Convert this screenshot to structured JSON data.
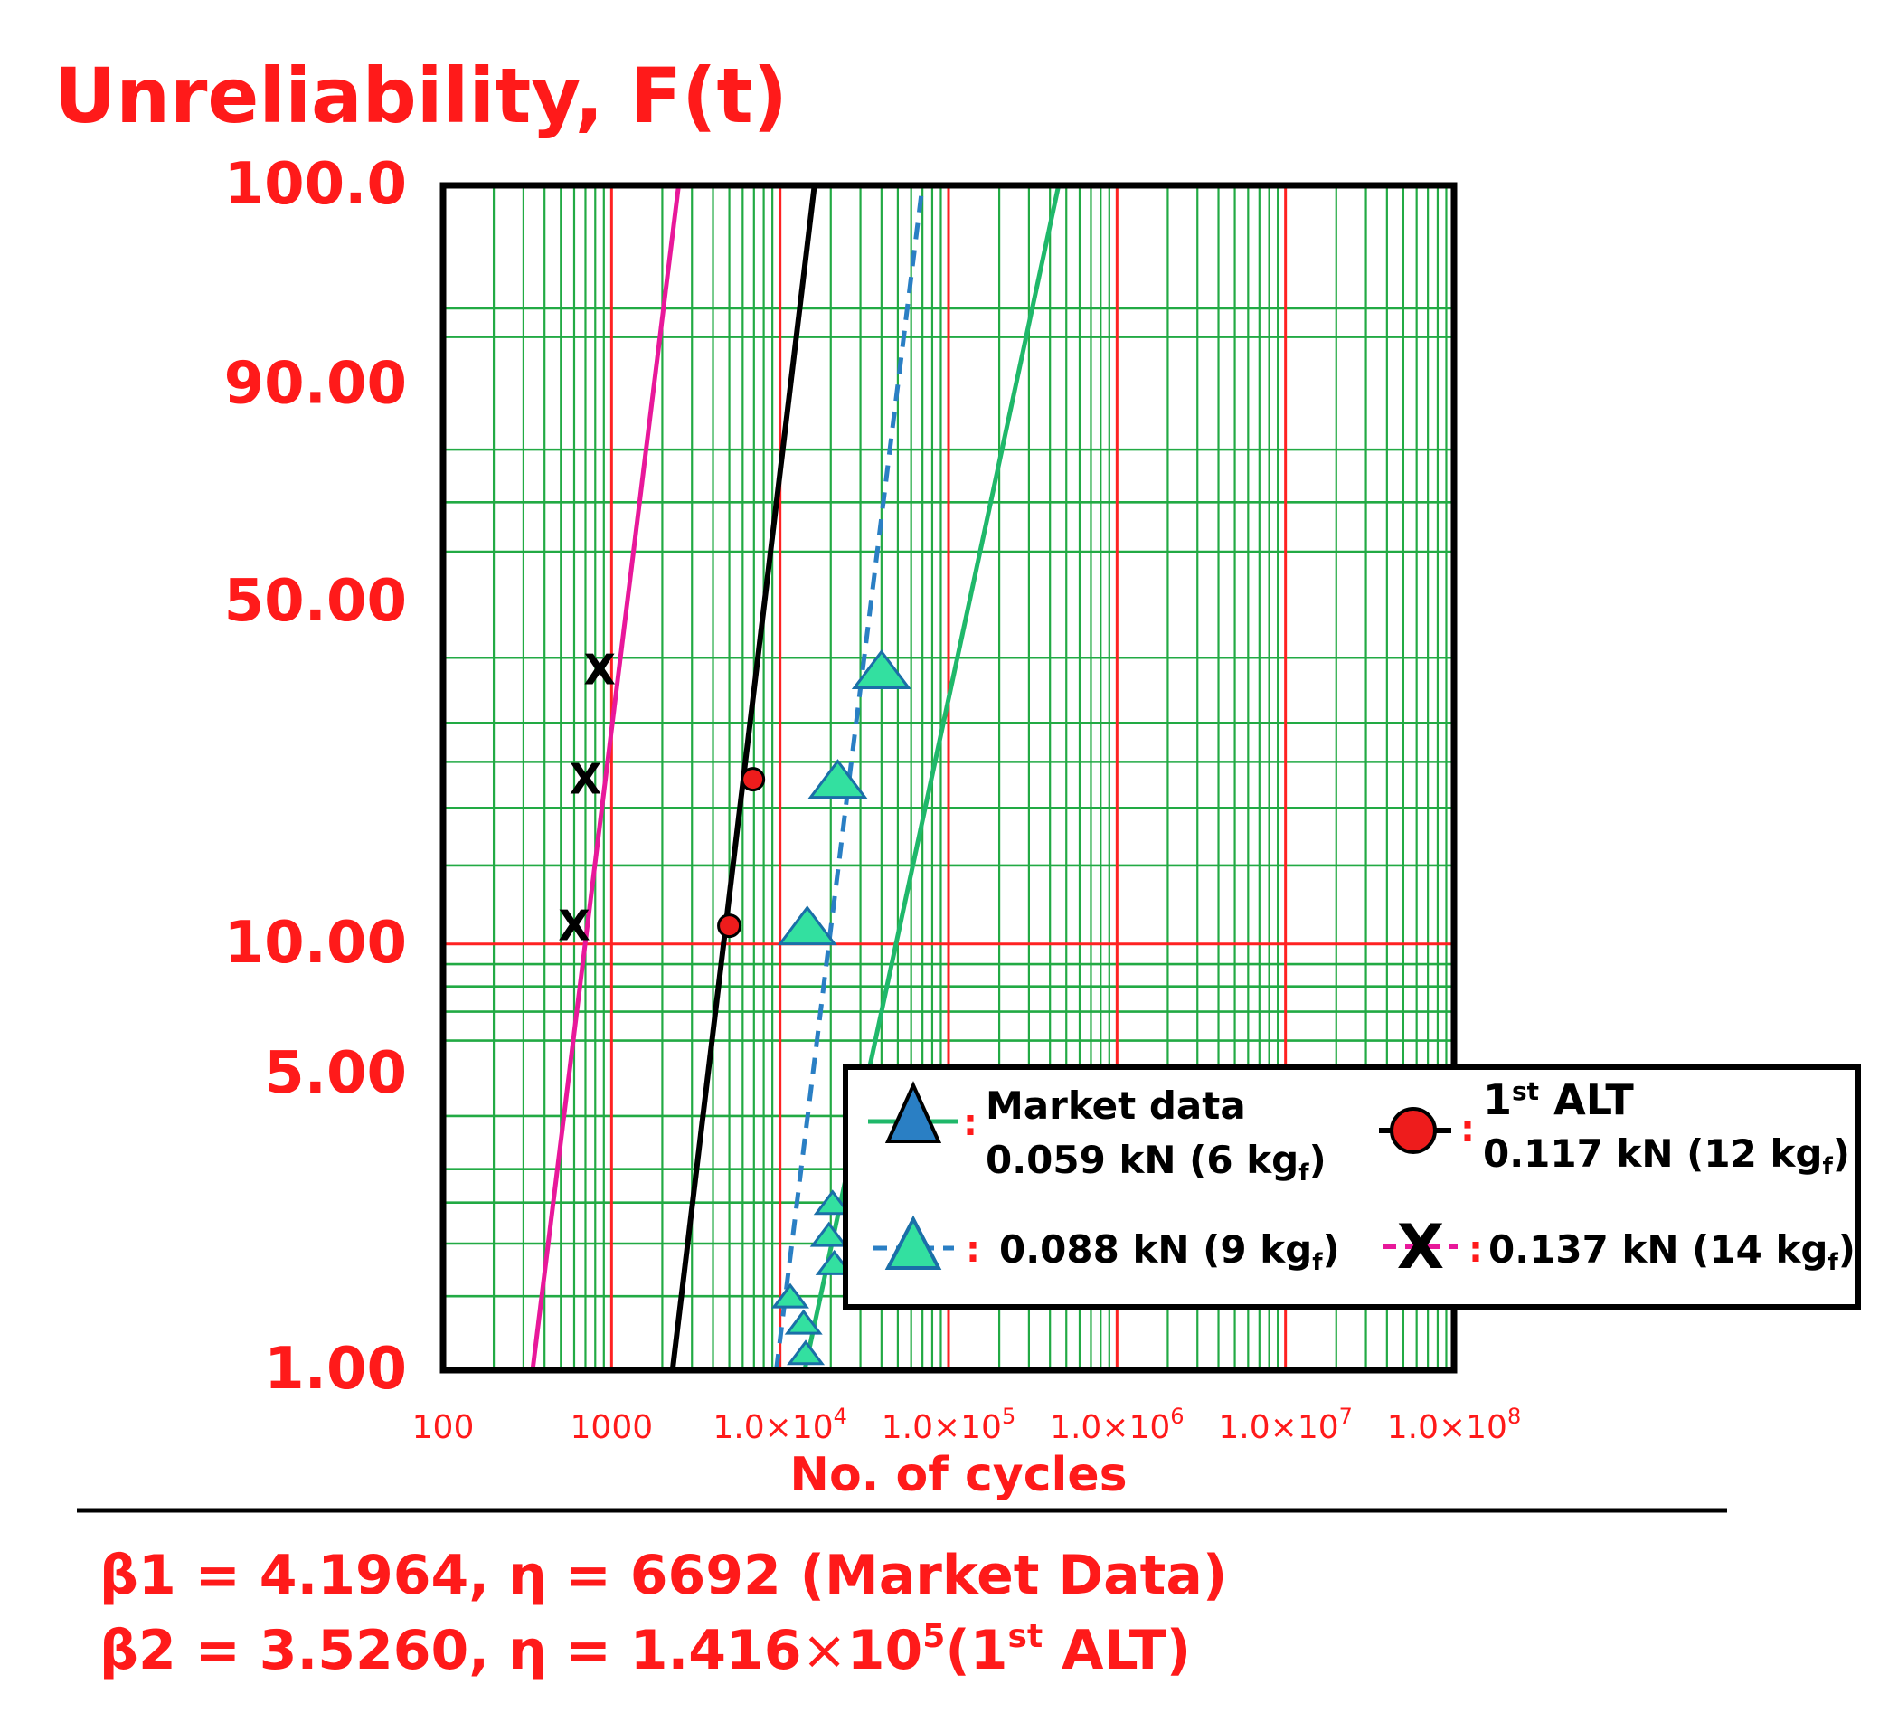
{
  "chart_data": {
    "type": "scatter",
    "title": "Unreliability, F(t)",
    "xlabel": "No. of cycles",
    "ylabel": "",
    "x_scale": "log",
    "y_scale": "weibull",
    "xlim": [
      100,
      100000000
    ],
    "ylim": [
      1,
      100
    ],
    "grid": true,
    "x_ticks": [
      {
        "value": 100,
        "label": "100"
      },
      {
        "value": 1000,
        "label": "1000"
      },
      {
        "value": 10000,
        "mant": "1.0×10",
        "exp": "4"
      },
      {
        "value": 100000,
        "mant": "1.0×10",
        "exp": "5"
      },
      {
        "value": 1000000,
        "mant": "1.0×10",
        "exp": "6"
      },
      {
        "value": 10000000,
        "mant": "1.0×10",
        "exp": "7"
      },
      {
        "value": 100000000,
        "mant": "1.0×10",
        "exp": "8"
      }
    ],
    "y_ticks": [
      {
        "value": 1,
        "label": "1.00"
      },
      {
        "value": 5,
        "label": "5.00"
      },
      {
        "value": 10,
        "label": "10.00"
      },
      {
        "value": 50,
        "label": "50.00"
      },
      {
        "value": 90,
        "label": "90.00"
      },
      {
        "value": 99.9,
        "label": "100.0"
      }
    ],
    "series": [
      {
        "name": "0.137 kN (14 kgf)",
        "marker": "x",
        "color": "#e8189a",
        "line_style": "solid",
        "points": [
          [
            600,
            11
          ],
          [
            700,
            23
          ],
          [
            850,
            38
          ]
        ],
        "fit_line": [
          [
            340,
            1
          ],
          [
            2500,
            99.9
          ]
        ]
      },
      {
        "name": "0.117 kN (12 kgf)",
        "marker": "circle",
        "color": "#000000",
        "line_style": "solid",
        "points": [
          [
            5000,
            11
          ],
          [
            6900,
            23
          ]
        ],
        "fit_line": [
          [
            2300,
            1
          ],
          [
            16000,
            99.9
          ]
        ]
      },
      {
        "name": "0.088 kN (9 kgf)",
        "marker": "triangle",
        "color": "#2a7fc4",
        "line_style": "dashed",
        "points": [
          [
            14500,
            11
          ],
          [
            22000,
            23
          ],
          [
            40000,
            38
          ],
          [
            11500,
            1.5
          ],
          [
            13800,
            1.3
          ],
          [
            14200,
            1.1
          ]
        ],
        "fit_line": [
          [
            9500,
            1
          ],
          [
            70000,
            99.9
          ]
        ]
      },
      {
        "name": "0.059 kN (6 kgf)",
        "marker": "triangle",
        "color": "#1fb86a",
        "line_style": "solid",
        "points": [
          [
            20500,
            2.5
          ],
          [
            19500,
            2.1
          ],
          [
            21000,
            1.8
          ]
        ],
        "fit_line": [
          [
            14000,
            1
          ],
          [
            450000,
            99.9
          ]
        ]
      }
    ]
  },
  "legend": {
    "market_label": "Market data",
    "market_value": "0.059 kN (6 kg",
    "market_sub": "f",
    "market_close": ")",
    "alt_label": "1",
    "alt_sup": "st",
    "alt_label2": " ALT",
    "alt_value": "0.117 kN (12 kg",
    "alt_sub": "f",
    "alt_close": ")",
    "nine_value": "0.088 kN (9 kg",
    "nine_sub": "f",
    "nine_close": ")",
    "fourteen_value": "0.137 kN (14 kg",
    "fourteen_sub": "f",
    "fourteen_close": ")",
    "sep": ":"
  },
  "params": {
    "line1": "β1 = 4.1964, η = 6692 (Market Data)",
    "line2_a": "β2 = 3.5260, η = 1.416",
    "line2_times": "×",
    "line2_b": "10",
    "line2_exp": "5",
    "line2_c": "(1",
    "line2_sup": "st",
    "line2_d": " ALT)"
  },
  "colors": {
    "accent_red": "#ff1a1a",
    "grid_green": "#22aa44",
    "grid_red": "#ff2222"
  }
}
